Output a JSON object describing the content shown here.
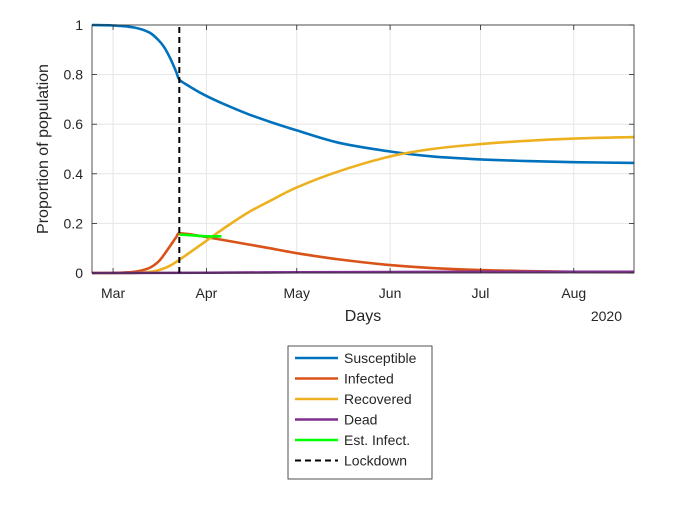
{
  "chart_data": {
    "type": "line",
    "title": "",
    "xlabel": "Days",
    "ylabel": "Proportion of population",
    "x_ticks": [
      "Mar",
      "Apr",
      "May",
      "Jun",
      "Jul",
      "Aug"
    ],
    "x_secondary_label": "2020",
    "x_range": [
      "2020-02-23",
      "2020-08-21"
    ],
    "y_ticks": [
      "0",
      "0.2",
      "0.4",
      "0.6",
      "0.8",
      "1"
    ],
    "ylim": [
      0,
      1
    ],
    "grid": true,
    "legend_position": "below",
    "lockdown_date": "2020-03-23",
    "series": [
      {
        "name": "Susceptible",
        "color": "#0072BD",
        "style": "solid",
        "x": [
          "2020-02-23",
          "2020-03-01",
          "2020-03-08",
          "2020-03-13",
          "2020-03-16",
          "2020-03-18",
          "2020-03-20",
          "2020-03-22",
          "2020-03-23",
          "2020-03-26",
          "2020-03-31",
          "2020-04-07",
          "2020-04-15",
          "2020-04-22",
          "2020-05-01",
          "2020-05-15",
          "2020-06-01",
          "2020-06-15",
          "2020-07-01",
          "2020-07-15",
          "2020-08-01",
          "2020-08-21"
        ],
        "y": [
          1.0,
          0.998,
          0.99,
          0.97,
          0.94,
          0.91,
          0.865,
          0.81,
          0.78,
          0.755,
          0.72,
          0.68,
          0.64,
          0.61,
          0.575,
          0.525,
          0.49,
          0.47,
          0.458,
          0.452,
          0.447,
          0.444
        ]
      },
      {
        "name": "Infected",
        "color": "#D95319",
        "style": "solid",
        "x": [
          "2020-02-23",
          "2020-03-01",
          "2020-03-08",
          "2020-03-13",
          "2020-03-16",
          "2020-03-18",
          "2020-03-20",
          "2020-03-22",
          "2020-03-23",
          "2020-03-27",
          "2020-04-01",
          "2020-04-08",
          "2020-04-15",
          "2020-04-22",
          "2020-05-01",
          "2020-05-15",
          "2020-06-01",
          "2020-06-15",
          "2020-07-01",
          "2020-07-15",
          "2020-08-01",
          "2020-08-21"
        ],
        "y": [
          0.0,
          0.0,
          0.005,
          0.02,
          0.045,
          0.075,
          0.11,
          0.145,
          0.16,
          0.155,
          0.145,
          0.13,
          0.115,
          0.1,
          0.08,
          0.055,
          0.032,
          0.02,
          0.012,
          0.008,
          0.005,
          0.003
        ]
      },
      {
        "name": "Recovered",
        "color": "#EDB120",
        "style": "solid",
        "x": [
          "2020-02-23",
          "2020-03-08",
          "2020-03-15",
          "2020-03-20",
          "2020-03-25",
          "2020-04-01",
          "2020-04-08",
          "2020-04-15",
          "2020-04-22",
          "2020-05-01",
          "2020-05-15",
          "2020-06-01",
          "2020-06-15",
          "2020-07-01",
          "2020-07-15",
          "2020-08-01",
          "2020-08-21"
        ],
        "y": [
          0.0,
          0.0,
          0.008,
          0.03,
          0.07,
          0.13,
          0.19,
          0.245,
          0.29,
          0.345,
          0.41,
          0.47,
          0.5,
          0.52,
          0.532,
          0.542,
          0.548
        ]
      },
      {
        "name": "Dead",
        "color": "#7E2F8E",
        "style": "solid",
        "x": [
          "2020-02-23",
          "2020-04-01",
          "2020-05-01",
          "2020-06-01",
          "2020-07-01",
          "2020-08-21"
        ],
        "y": [
          0.0,
          0.001,
          0.003,
          0.004,
          0.005,
          0.005
        ]
      },
      {
        "name": "Est. Infect.",
        "color": "#00FF00",
        "style": "solid",
        "x": [
          "2020-03-23",
          "2020-03-27",
          "2020-04-01",
          "2020-04-06"
        ],
        "y": [
          0.155,
          0.152,
          0.148,
          0.148
        ]
      },
      {
        "name": "Lockdown",
        "color": "#000000",
        "style": "dashed",
        "x": [
          "2020-03-23",
          "2020-03-23"
        ],
        "y": [
          0,
          1
        ]
      }
    ]
  }
}
